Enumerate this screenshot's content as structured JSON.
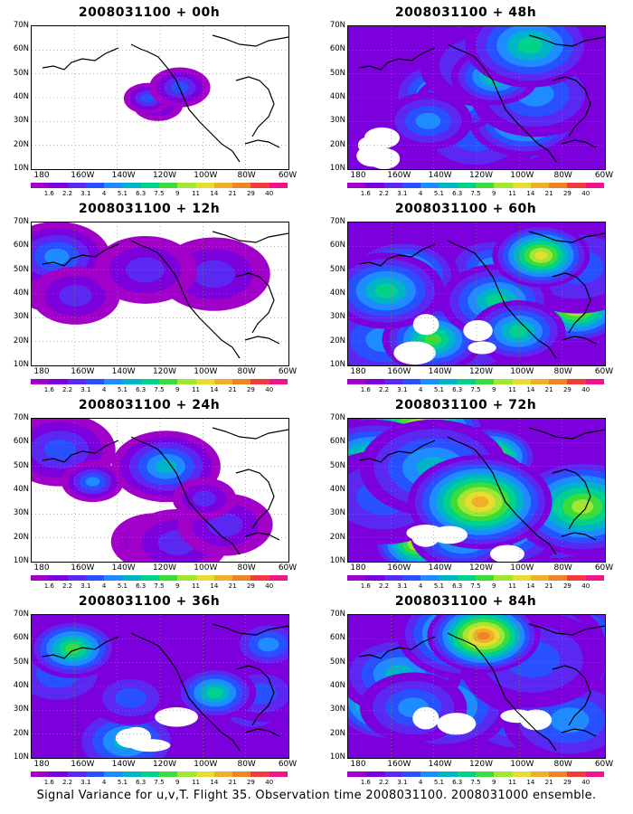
{
  "panels": [
    {
      "title": "2008031100 + 00h",
      "intensity": 0
    },
    {
      "title": "2008031100 + 12h",
      "intensity": 1
    },
    {
      "title": "2008031100 + 24h",
      "intensity": 2
    },
    {
      "title": "2008031100 + 36h",
      "intensity": 3
    },
    {
      "title": "2008031100 + 48h",
      "intensity": 4
    },
    {
      "title": "2008031100 + 60h",
      "intensity": 5
    },
    {
      "title": "2008031100 + 72h",
      "intensity": 6
    },
    {
      "title": "2008031100 + 84h",
      "intensity": 7
    }
  ],
  "lat_labels": [
    "70N",
    "60N",
    "50N",
    "40N",
    "30N",
    "20N",
    "10N"
  ],
  "lon_labels": [
    "180",
    "160W",
    "140W",
    "120W",
    "100W",
    "80W",
    "60W"
  ],
  "colorbar_labels": [
    "1.6",
    "2.2",
    "3.1",
    "4",
    "5.1",
    "6.3",
    "7.5",
    "9",
    "11",
    "14",
    "21",
    "29",
    "40"
  ],
  "colorbar_colors": [
    "#a000c8",
    "#7c00dc",
    "#5a28f0",
    "#2850ff",
    "#1e8cff",
    "#00b4c8",
    "#00d28c",
    "#3cdc3c",
    "#a0e632",
    "#e6dc32",
    "#f0af28",
    "#f08228",
    "#f03c3c",
    "#f0148c"
  ],
  "caption": "Signal Variance for u,v,T. Flight 35. Observation time 2008031100. 2008031000 ensemble."
}
